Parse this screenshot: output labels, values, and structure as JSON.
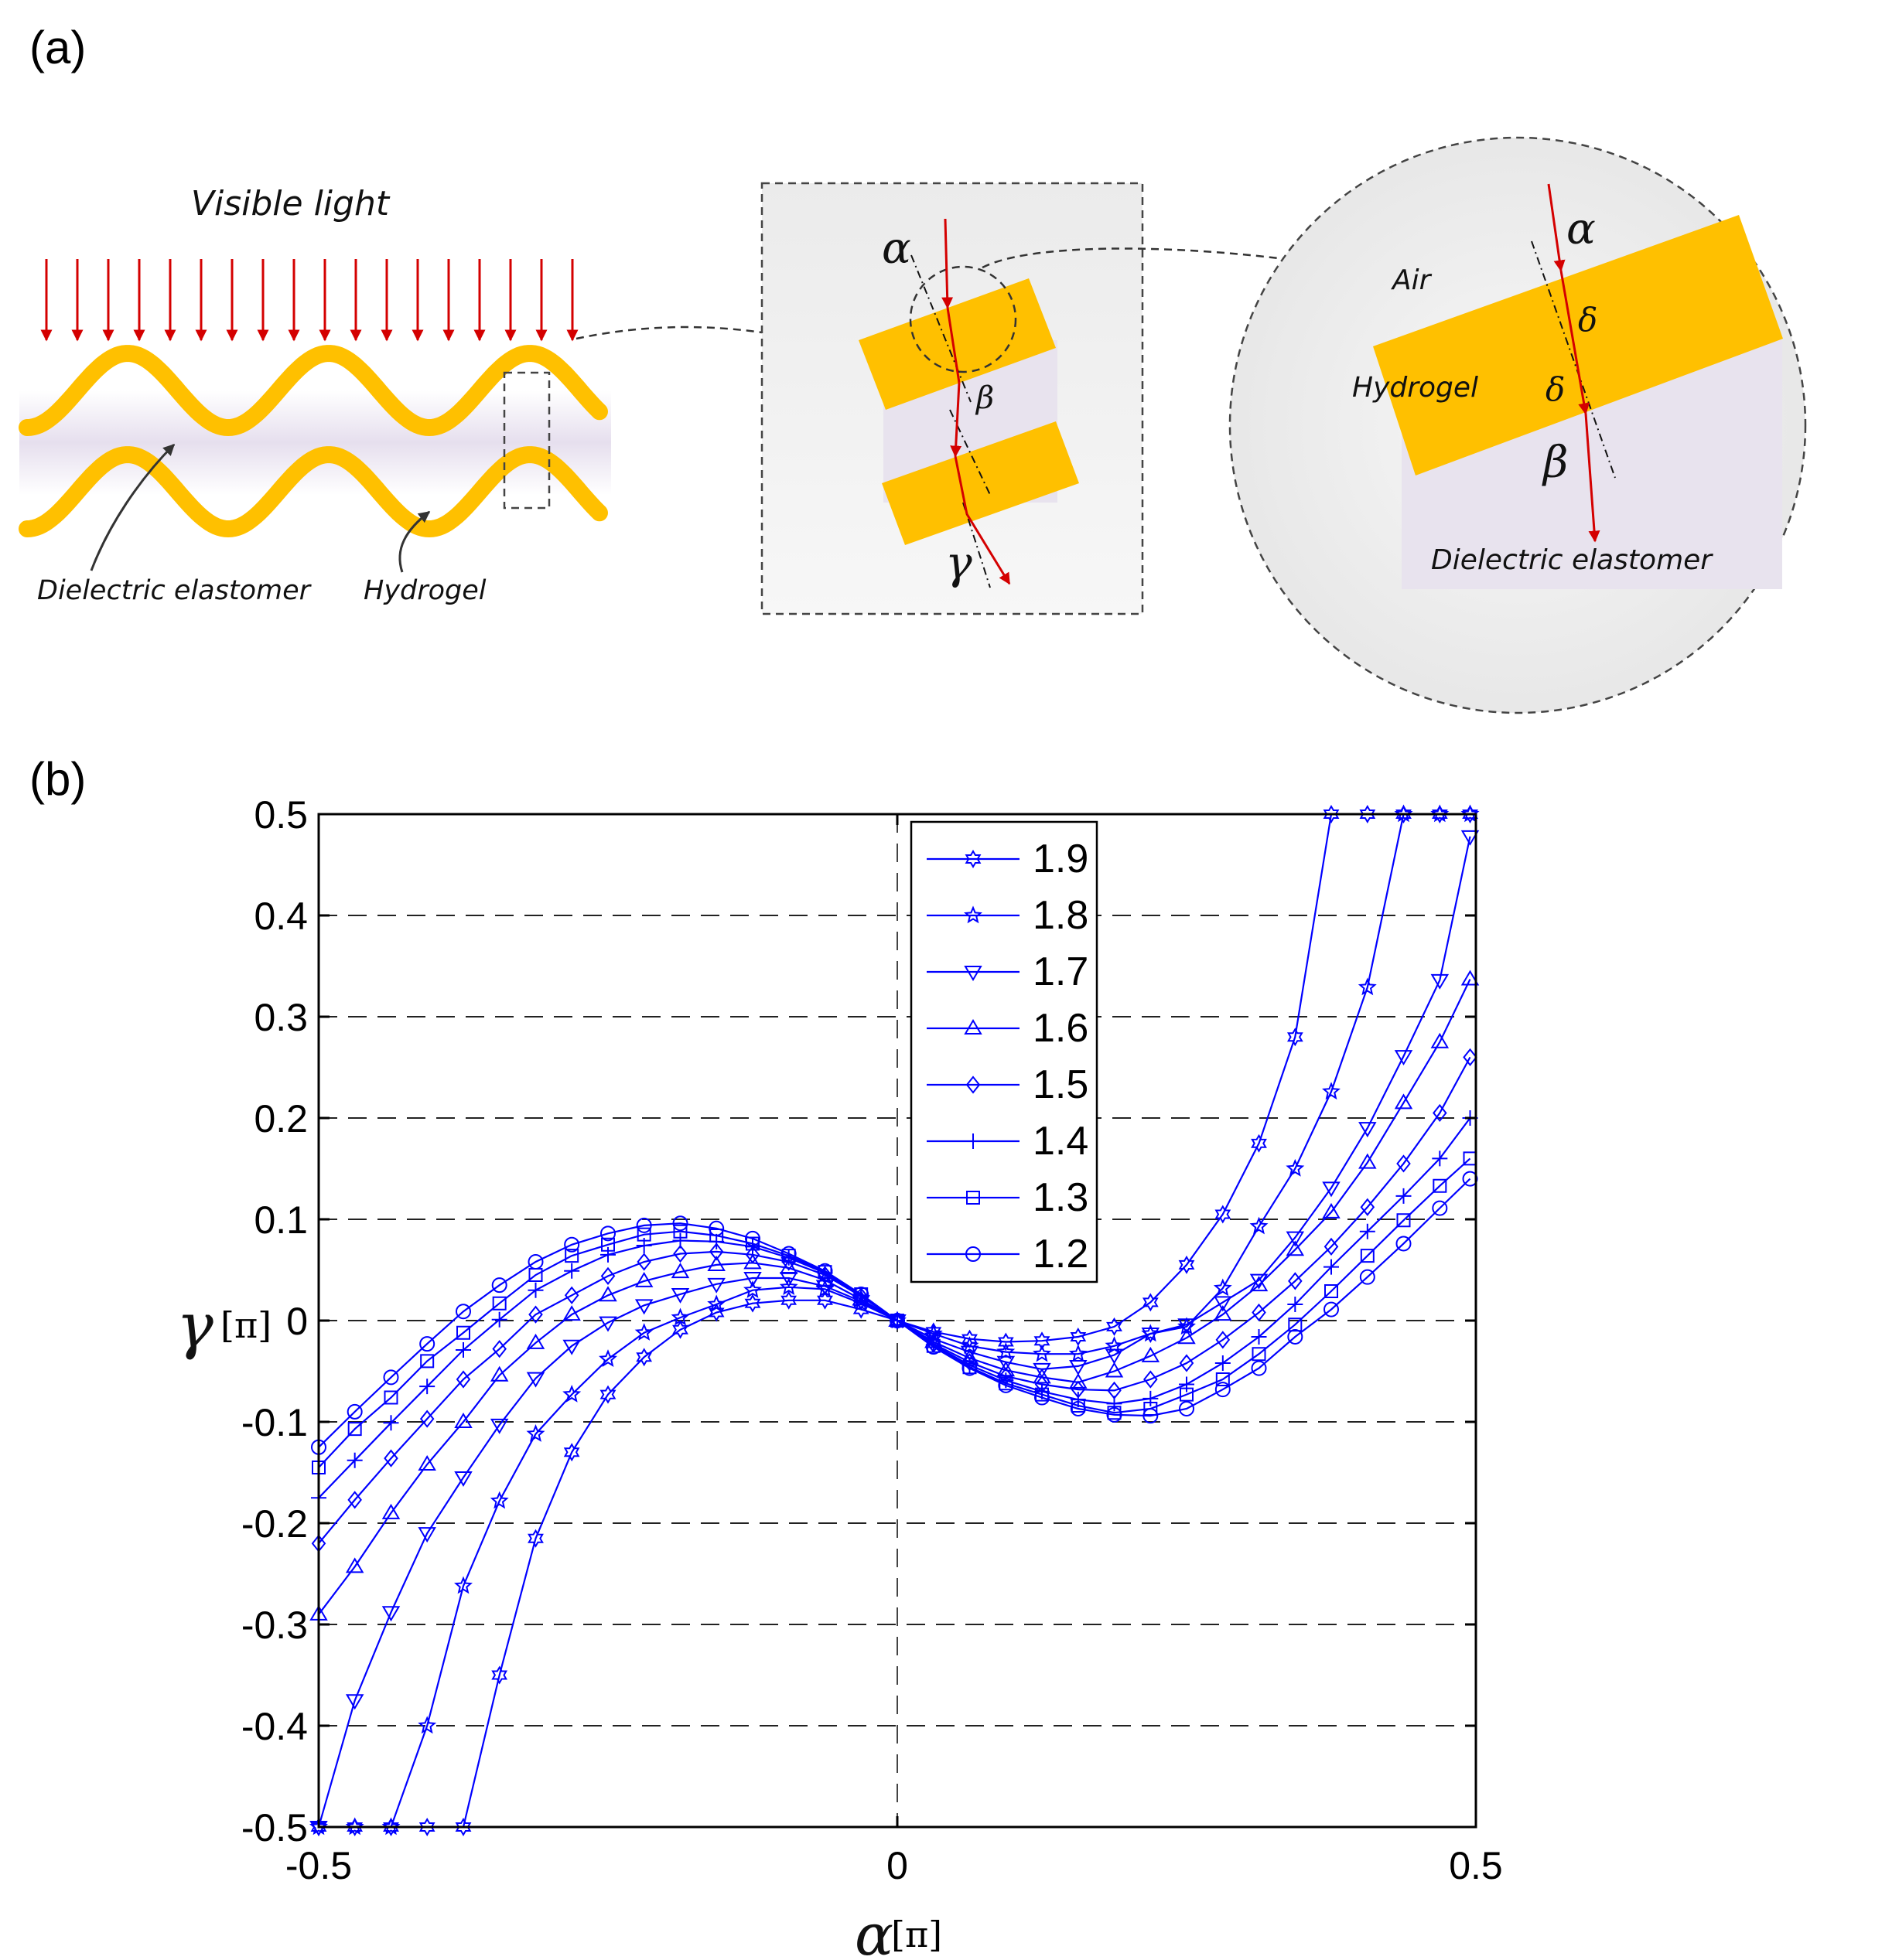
{
  "panels": {
    "a": {
      "label": "(a)",
      "left_sketch": {
        "title": "Visible light",
        "label_dielectric": "Dielectric elastomer",
        "label_hydrogel": "Hydrogel"
      },
      "middle_inset": {
        "angle_alpha": "α",
        "angle_beta": "β",
        "angle_gamma": "γ"
      },
      "right_zoom": {
        "label_air": "Air",
        "label_hydrogel": "Hydrogel",
        "label_dielectric": "Dielectric elastomer",
        "angle_alpha": "α",
        "angle_delta_1": "δ",
        "angle_delta_2": "δ",
        "angle_beta": "β"
      },
      "colors": {
        "film": "#ffc000",
        "ray": "#d40000",
        "gel": "#e8e3ee"
      }
    },
    "b": {
      "label": "(b)"
    }
  },
  "chart_data": {
    "type": "line",
    "title": "",
    "xlabel_symbol": "α",
    "xlabel_unit": "[π]",
    "ylabel_symbol": "γ",
    "ylabel_unit": "[π]",
    "xlim": [
      -0.5,
      0.5
    ],
    "ylim": [
      -0.5,
      0.5
    ],
    "xticks": [
      "-0.5",
      "0",
      "0.5"
    ],
    "yticks": [
      "0.5",
      "0.4",
      "0.3",
      "0.2",
      "0.1",
      "0",
      "-0.1",
      "-0.2",
      "-0.3",
      "-0.4",
      "-0.5"
    ],
    "grid": "horizontal dashed at each y tick, vertical dashed at x = 0",
    "legend_position": "top-center",
    "line_color": "#0000ff",
    "x": [
      -0.5,
      -0.4688,
      -0.4375,
      -0.4063,
      -0.375,
      -0.3438,
      -0.3125,
      -0.2813,
      -0.25,
      -0.2188,
      -0.1875,
      -0.1563,
      -0.125,
      -0.0938,
      -0.0625,
      -0.0313,
      0,
      0.0313,
      0.0625,
      0.0938,
      0.125,
      0.1563,
      0.1875,
      0.2188,
      0.25,
      0.2813,
      0.3125,
      0.3438,
      0.375,
      0.4063,
      0.4375,
      0.4688,
      0.495
    ],
    "series": [
      {
        "name": "1.9",
        "marker": "hexagram",
        "values": [
          -0.5,
          -0.5,
          -0.5,
          -0.5,
          -0.5,
          -0.35,
          -0.215,
          -0.13,
          -0.073,
          -0.036,
          -0.009,
          0.008,
          0.017,
          0.02,
          0.02,
          0.011,
          0,
          -0.011,
          -0.018,
          -0.021,
          -0.02,
          -0.016,
          -0.006,
          0.018,
          0.055,
          0.105,
          0.175,
          0.28,
          0.5,
          0.5,
          0.5,
          0.5,
          0.5
        ]
      },
      {
        "name": "1.8",
        "marker": "pentagram",
        "values": [
          -0.5,
          -0.5,
          -0.5,
          -0.4,
          -0.262,
          -0.178,
          -0.112,
          -0.073,
          -0.038,
          -0.012,
          0.003,
          0.016,
          0.03,
          0.033,
          0.031,
          0.017,
          0,
          -0.013,
          -0.025,
          -0.031,
          -0.033,
          -0.033,
          -0.025,
          -0.013,
          -0.006,
          0.032,
          0.093,
          0.15,
          0.226,
          0.329,
          0.5,
          0.5,
          0.5
        ]
      },
      {
        "name": "1.7",
        "marker": "triangle-down",
        "values": [
          -0.5,
          -0.375,
          -0.288,
          -0.21,
          -0.155,
          -0.103,
          -0.057,
          -0.025,
          -0.002,
          0.015,
          0.026,
          0.036,
          0.042,
          0.042,
          0.034,
          0.019,
          0,
          -0.018,
          -0.031,
          -0.041,
          -0.048,
          -0.045,
          -0.034,
          -0.013,
          -0.004,
          0.018,
          0.04,
          0.082,
          0.131,
          0.19,
          0.261,
          0.336,
          0.478
        ]
      },
      {
        "name": "1.6",
        "marker": "triangle-up",
        "values": [
          -0.29,
          -0.243,
          -0.19,
          -0.142,
          -0.1,
          -0.054,
          -0.022,
          0.006,
          0.025,
          0.039,
          0.048,
          0.055,
          0.057,
          0.052,
          0.04,
          0.021,
          0,
          -0.021,
          -0.037,
          -0.049,
          -0.056,
          -0.061,
          -0.05,
          -0.035,
          -0.017,
          0.006,
          0.035,
          0.07,
          0.107,
          0.156,
          0.215,
          0.275,
          0.337
        ]
      },
      {
        "name": "1.5",
        "marker": "diamond",
        "values": [
          -0.22,
          -0.177,
          -0.136,
          -0.097,
          -0.058,
          -0.028,
          0.006,
          0.025,
          0.044,
          0.058,
          0.066,
          0.068,
          0.065,
          0.058,
          0.045,
          0.024,
          0,
          -0.023,
          -0.041,
          -0.055,
          -0.063,
          -0.068,
          -0.069,
          -0.058,
          -0.042,
          -0.019,
          0.008,
          0.039,
          0.073,
          0.112,
          0.155,
          0.205,
          0.26
        ]
      },
      {
        "name": "1.4",
        "marker": "plus",
        "values": [
          -0.175,
          -0.138,
          -0.101,
          -0.065,
          -0.029,
          0.001,
          0.03,
          0.049,
          0.065,
          0.074,
          0.079,
          0.078,
          0.073,
          0.062,
          0.047,
          0.025,
          0,
          -0.024,
          -0.044,
          -0.059,
          -0.07,
          -0.078,
          -0.082,
          -0.077,
          -0.063,
          -0.042,
          -0.016,
          0.016,
          0.053,
          0.088,
          0.123,
          0.16,
          0.2
        ]
      },
      {
        "name": "1.3",
        "marker": "square",
        "values": [
          -0.145,
          -0.107,
          -0.076,
          -0.04,
          -0.012,
          0.017,
          0.045,
          0.064,
          0.075,
          0.085,
          0.088,
          0.084,
          0.076,
          0.064,
          0.048,
          0.026,
          0,
          -0.025,
          -0.046,
          -0.062,
          -0.073,
          -0.084,
          -0.091,
          -0.087,
          -0.073,
          -0.058,
          -0.033,
          -0.004,
          0.029,
          0.064,
          0.099,
          0.133,
          0.16
        ]
      },
      {
        "name": "1.2",
        "marker": "circle",
        "values": [
          -0.125,
          -0.09,
          -0.056,
          -0.023,
          0.009,
          0.035,
          0.058,
          0.075,
          0.086,
          0.094,
          0.096,
          0.091,
          0.081,
          0.066,
          0.049,
          0.026,
          0,
          -0.026,
          -0.047,
          -0.064,
          -0.076,
          -0.087,
          -0.093,
          -0.094,
          -0.087,
          -0.068,
          -0.047,
          -0.016,
          0.011,
          0.043,
          0.076,
          0.111,
          0.14
        ]
      }
    ]
  }
}
